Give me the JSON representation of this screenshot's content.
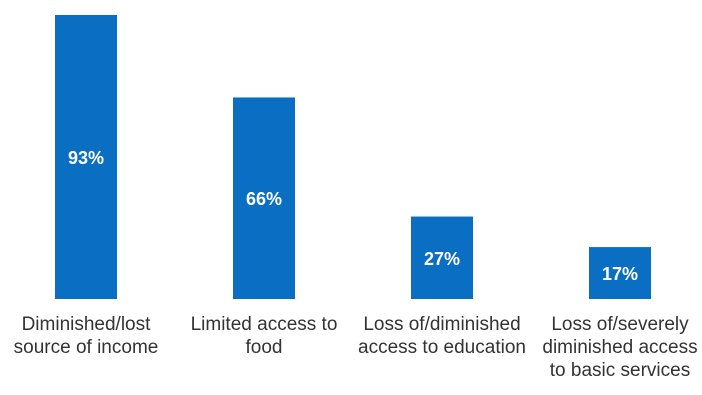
{
  "chart_data": {
    "type": "bar",
    "categories": [
      [
        "Diminished/lost",
        "source of income"
      ],
      [
        "Limited access to",
        "food"
      ],
      [
        "Loss of/diminished",
        "access to education"
      ],
      [
        "Loss of/severely",
        "diminished access",
        "to basic services"
      ]
    ],
    "values": [
      93,
      66,
      27,
      17
    ],
    "data_labels": [
      "93%",
      "66%",
      "27%",
      "17%"
    ],
    "ylim": [
      0,
      100
    ],
    "grid": false,
    "legend": "none",
    "bar_color": "#0a6fc2",
    "label_color": "#ffffff",
    "category_color": "#333333"
  }
}
